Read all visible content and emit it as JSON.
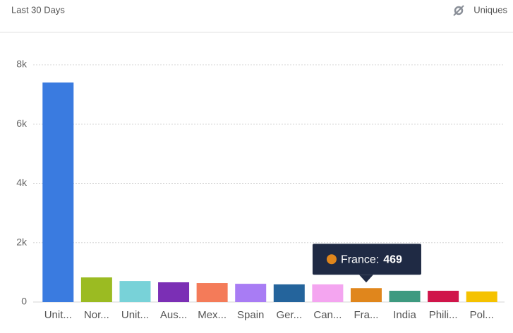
{
  "header": {
    "range": "Last 30 Days",
    "metric": "Uniques"
  },
  "chart_data": {
    "type": "bar",
    "categories": [
      "Unit...",
      "Nor...",
      "Unit...",
      "Aus...",
      "Mex...",
      "Spain",
      "Ger...",
      "Can...",
      "Fra...",
      "India",
      "Phili...",
      "Pol..."
    ],
    "values": [
      7400,
      830,
      710,
      665,
      640,
      615,
      595,
      595,
      469,
      380,
      380,
      355
    ],
    "colors": [
      "#3a7be0",
      "#9bbb22",
      "#78d2d8",
      "#7b2fb5",
      "#f47b59",
      "#a87cf4",
      "#24649c",
      "#f4a5f0",
      "#e0861c",
      "#3e9a80",
      "#d0154a",
      "#f5c200"
    ],
    "ylim": [
      0,
      8000
    ],
    "yticks": [
      0,
      {
        "value": 2000,
        "label": "2k"
      },
      {
        "value": 4000,
        "label": "4k"
      },
      {
        "value": 6000,
        "label": "6k"
      },
      {
        "value": 8000,
        "label": "8k"
      }
    ],
    "grid": true,
    "tooltip": {
      "label": "France:",
      "index": 8
    }
  }
}
